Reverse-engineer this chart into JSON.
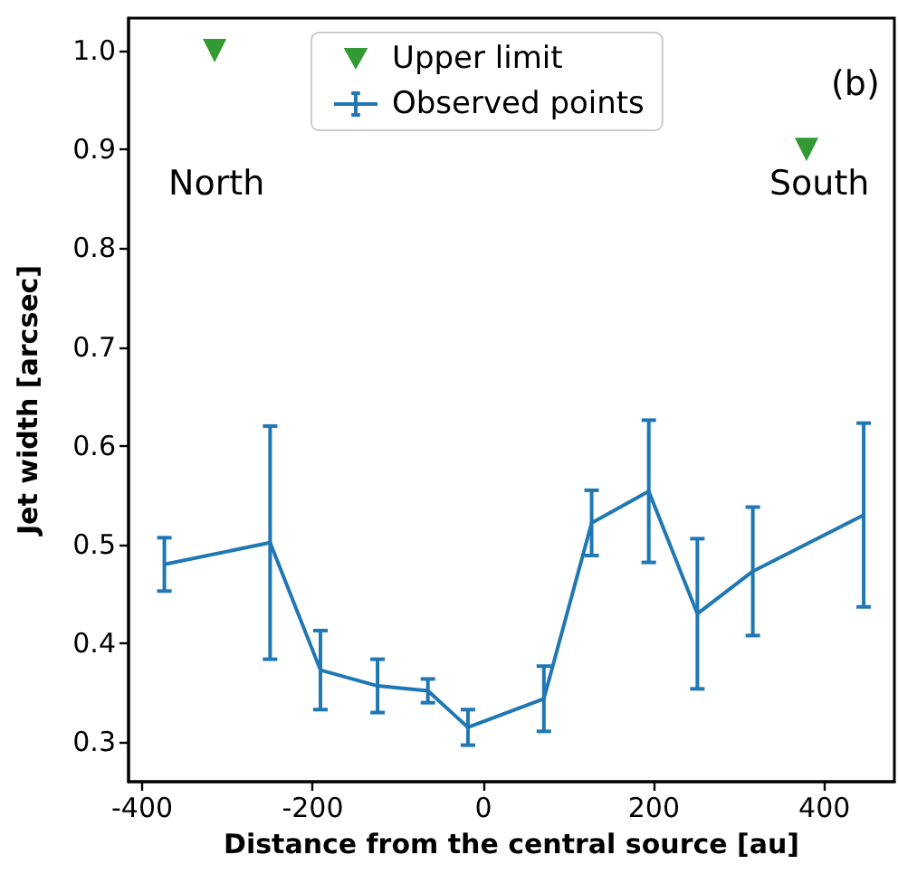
{
  "chart_data": {
    "type": "line",
    "xlabel": "Distance from the central source [au]",
    "ylabel": "Jet width [arcsec]",
    "annotations": [
      "North",
      "South",
      "(b)"
    ],
    "xlim": [
      -416,
      482
    ],
    "ylim": [
      0.26,
      1.033
    ],
    "xticks": [
      -400,
      -200,
      0,
      200,
      400
    ],
    "yticks": [
      0.3,
      0.4,
      0.5,
      0.6,
      0.7,
      0.8,
      0.9,
      {
        "value": 1,
        "label": "1.0"
      }
    ],
    "grid": false,
    "legend": "top",
    "series": [
      {
        "name": "Upper limit",
        "type": "scatter",
        "marker": "triangle",
        "color": "#008000",
        "x": [
          -315,
          379
        ],
        "values": [
          1.0,
          0.9
        ]
      },
      {
        "name": "Observed points",
        "marker": "none",
        "color": "#1f77b4",
        "x": [
          -374,
          -250,
          -191,
          -124,
          -65,
          -18,
          71,
          127,
          194,
          251,
          316,
          446
        ],
        "values": [
          0.48,
          0.502,
          0.373,
          0.357,
          0.352,
          0.315,
          0.344,
          0.522,
          0.554,
          0.43,
          0.473,
          0.53
        ],
        "errors": [
          0.027,
          0.118,
          0.04,
          0.027,
          0.012,
          0.018,
          0.033,
          0.033,
          0.072,
          0.076,
          0.065,
          0.093
        ]
      }
    ]
  }
}
